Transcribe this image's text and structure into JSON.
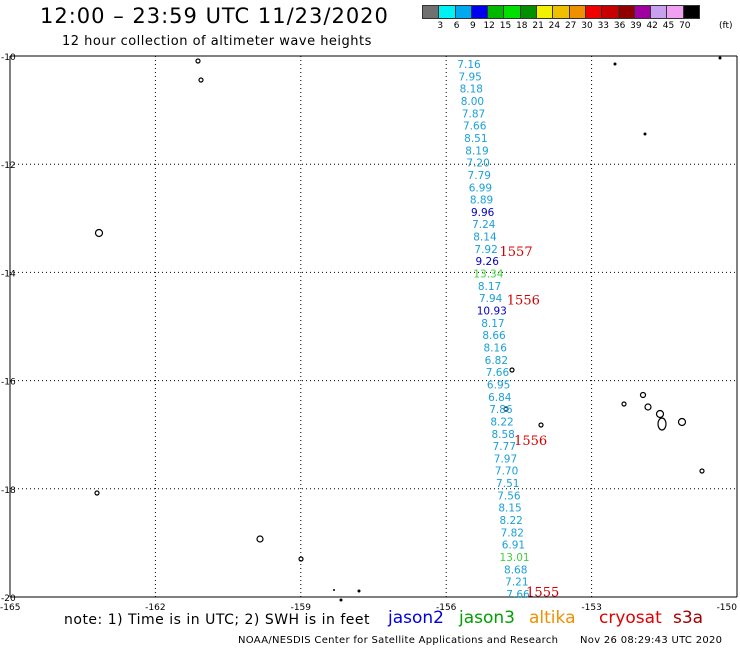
{
  "header": {
    "title": "12:00 – 23:59 UTC 11/23/2020",
    "subtitle": "12 hour collection of altimeter wave heights"
  },
  "colorbar": {
    "colors": [
      "#707070",
      "#00f2f2",
      "#00a8f0",
      "#0000f0",
      "#00b800",
      "#00e000",
      "#009000",
      "#f0f000",
      "#f0c000",
      "#f09000",
      "#f00000",
      "#c80000",
      "#900000",
      "#a000a0",
      "#c8a0f0",
      "#f0a0f0",
      "#000000"
    ],
    "labels": [
      "3",
      "6",
      "9",
      "12",
      "15",
      "18",
      "21",
      "24",
      "27",
      "30",
      "33",
      "36",
      "39",
      "42",
      "45",
      "70"
    ],
    "unit": "(ft)"
  },
  "map": {
    "lat_range": [
      -20,
      -10
    ],
    "lon_range": [
      -165,
      -150
    ],
    "lat_ticks": [
      "-10",
      "-12",
      "-14",
      "-16",
      "-18",
      "-20"
    ],
    "lon_ticks": [
      "-165",
      "-162",
      "-159",
      "-156",
      "-153",
      "-150"
    ],
    "grid": "dotted",
    "label_color": "#1aa0d8"
  },
  "track": {
    "swh_values": [
      {
        "text": "7.16",
        "color": "#1aa0d8"
      },
      {
        "text": "7.95",
        "color": "#1aa0d8"
      },
      {
        "text": "8.18",
        "color": "#1aa0d8"
      },
      {
        "text": "8.00",
        "color": "#1aa0d8"
      },
      {
        "text": "7.87",
        "color": "#1aa0d8"
      },
      {
        "text": "7.66",
        "color": "#1aa0d8"
      },
      {
        "text": "8.51",
        "color": "#1aa0d8"
      },
      {
        "text": "8.19",
        "color": "#1aa0d8"
      },
      {
        "text": "7.20",
        "color": "#1aa0d8"
      },
      {
        "text": "7.79",
        "color": "#1aa0d8"
      },
      {
        "text": "6.99",
        "color": "#1aa0d8"
      },
      {
        "text": "8.89",
        "color": "#1aa0d8"
      },
      {
        "text": "9.96",
        "color": "#0000c0"
      },
      {
        "text": "7.24",
        "color": "#1aa0d8"
      },
      {
        "text": "8.14",
        "color": "#1aa0d8"
      },
      {
        "text": "7.92",
        "color": "#1aa0d8"
      },
      {
        "text": "9.26",
        "color": "#0000c0"
      },
      {
        "text": "13.34",
        "color": "#40d040"
      },
      {
        "text": "8.17",
        "color": "#1aa0d8"
      },
      {
        "text": "7.94",
        "color": "#1aa0d8"
      },
      {
        "text": "10.93",
        "color": "#0000c0"
      },
      {
        "text": "8.17",
        "color": "#1aa0d8"
      },
      {
        "text": "8.66",
        "color": "#1aa0d8"
      },
      {
        "text": "8.16",
        "color": "#1aa0d8"
      },
      {
        "text": "6.82",
        "color": "#1aa0d8"
      },
      {
        "text": "7.66",
        "color": "#1aa0d8"
      },
      {
        "text": "6.95",
        "color": "#1aa0d8"
      },
      {
        "text": "6.84",
        "color": "#1aa0d8"
      },
      {
        "text": "7.86",
        "color": "#1aa0d8"
      },
      {
        "text": "8.22",
        "color": "#1aa0d8"
      },
      {
        "text": "8.58",
        "color": "#1aa0d8"
      },
      {
        "text": "7.77",
        "color": "#1aa0d8"
      },
      {
        "text": "7.97",
        "color": "#1aa0d8"
      },
      {
        "text": "7.70",
        "color": "#1aa0d8"
      },
      {
        "text": "7.51",
        "color": "#1aa0d8"
      },
      {
        "text": "7.56",
        "color": "#1aa0d8"
      },
      {
        "text": "8.15",
        "color": "#1aa0d8"
      },
      {
        "text": "8.22",
        "color": "#1aa0d8"
      },
      {
        "text": "7.82",
        "color": "#1aa0d8"
      },
      {
        "text": "6.91",
        "color": "#1aa0d8"
      },
      {
        "text": "13.01",
        "color": "#40d040"
      },
      {
        "text": "8.68",
        "color": "#1aa0d8"
      },
      {
        "text": "7.21",
        "color": "#1aa0d8"
      },
      {
        "text": "7.66",
        "color": "#1aa0d8"
      }
    ],
    "time_labels": [
      {
        "text": "1557",
        "lat": -13.6,
        "lon": -154.9
      },
      {
        "text": "1556",
        "lat": -14.5,
        "lon": -154.75
      },
      {
        "text": "1556",
        "lat": -17.1,
        "lon": -154.6
      },
      {
        "text": "1555",
        "lat": -19.9,
        "lon": -154.35
      }
    ],
    "time_label_color": "#d00000"
  },
  "footer": {
    "note": "note: 1) Time is in UTC; 2) SWH is in feet",
    "legend": [
      {
        "name": "jason2",
        "color": "#0000e0"
      },
      {
        "name": "jason3",
        "color": "#00a000"
      },
      {
        "name": "altika",
        "color": "#f09000"
      },
      {
        "name": "cryosat",
        "color": "#e00000"
      },
      {
        "name": "s3a",
        "color": "#a00000"
      }
    ],
    "credit": "NOAA/NESDIS Center for Satellite Applications and Research",
    "timestamp": "Nov 26 08:29:43 UTC 2020"
  }
}
